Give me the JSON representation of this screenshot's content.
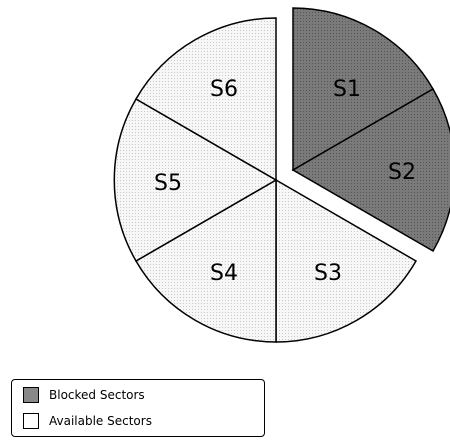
{
  "sectors": [
    {
      "label": "S1",
      "status": "blocked"
    },
    {
      "label": "S2",
      "status": "blocked"
    },
    {
      "label": "S3",
      "status": "available"
    },
    {
      "label": "S4",
      "status": "available"
    },
    {
      "label": "S5",
      "status": "available"
    },
    {
      "label": "S6",
      "status": "available"
    }
  ],
  "legend": {
    "blocked_label": "Blocked Sectors",
    "available_label": "Available Sectors"
  },
  "colors": {
    "blocked": "#7a7a7a",
    "available": "#f5f5f5",
    "stroke": "#000000"
  }
}
